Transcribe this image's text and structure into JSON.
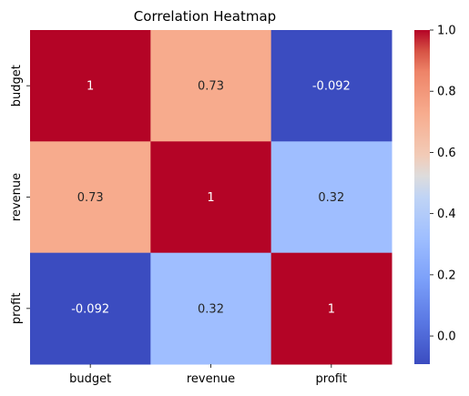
{
  "chart_data": {
    "type": "heatmap",
    "title": "Correlation Heatmap",
    "x_categories": [
      "budget",
      "revenue",
      "profit"
    ],
    "y_categories": [
      "budget",
      "revenue",
      "profit"
    ],
    "values": [
      [
        1,
        0.73,
        -0.092
      ],
      [
        0.73,
        1,
        0.32
      ],
      [
        -0.092,
        0.32,
        1
      ]
    ],
    "annotations": [
      [
        "1",
        "0.73",
        "-0.092"
      ],
      [
        "0.73",
        "1",
        "0.32"
      ],
      [
        "-0.092",
        "0.32",
        "1"
      ]
    ],
    "colormap": "coolwarm",
    "colorbar": {
      "vmin": -0.092,
      "vmax": 1,
      "ticks": [
        1.0,
        0.8,
        0.6,
        0.4,
        0.2,
        0.0
      ],
      "tick_labels": [
        "1.0",
        "0.8",
        "0.6",
        "0.4",
        "0.2",
        "0.0"
      ]
    },
    "xlabel": "",
    "ylabel": ""
  }
}
